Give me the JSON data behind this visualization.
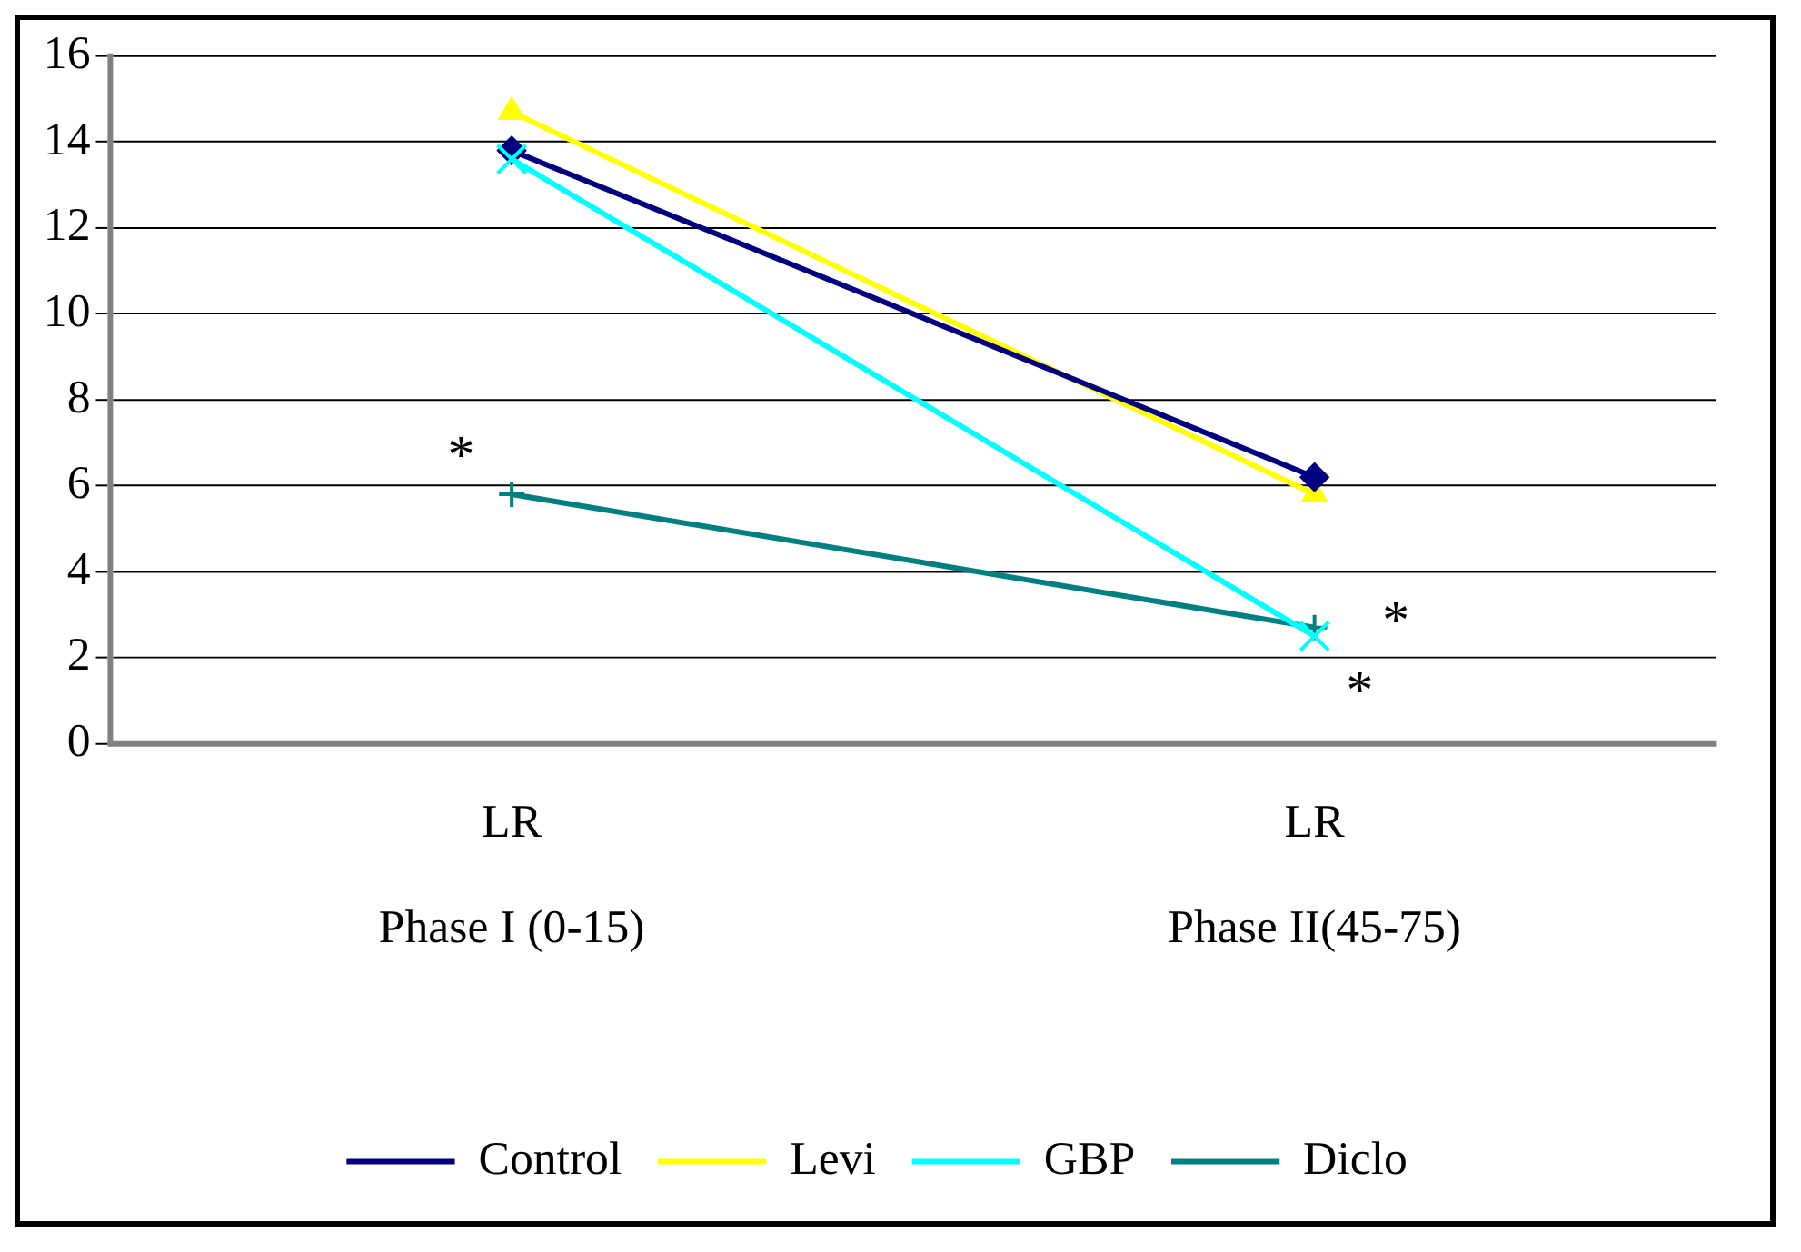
{
  "chart_data": {
    "type": "line",
    "categories": [
      "Phase I (0-15)",
      "Phase II(45-75)"
    ],
    "series": [
      {
        "name": "Control",
        "color": "#000080",
        "marker": "diamond",
        "values": [
          13.8,
          6.2
        ]
      },
      {
        "name": "Levi",
        "color": "#ffff00",
        "marker": "triangle",
        "values": [
          14.7,
          5.8
        ]
      },
      {
        "name": "GBP",
        "color": "#00ffff",
        "marker": "cross",
        "values": [
          13.6,
          2.5
        ]
      },
      {
        "name": "Diclo",
        "color": "#008080",
        "marker": "plus",
        "values": [
          5.8,
          2.7
        ]
      }
    ],
    "annotations": [
      "LR",
      "LR",
      {
        "text": "*",
        "x": "Phase I (0-15)",
        "y": 5.8
      },
      {
        "text": "*",
        "x": "Phase II(45-75)",
        "y": 2.7
      },
      {
        "text": "*",
        "x": "Phase II(45-75)",
        "y": 2.5
      }
    ],
    "ylim": [
      0,
      16
    ],
    "yticks": [
      0,
      2,
      4,
      6,
      8,
      10,
      12,
      14,
      16
    ],
    "grid": "y",
    "legend": "bottom"
  }
}
